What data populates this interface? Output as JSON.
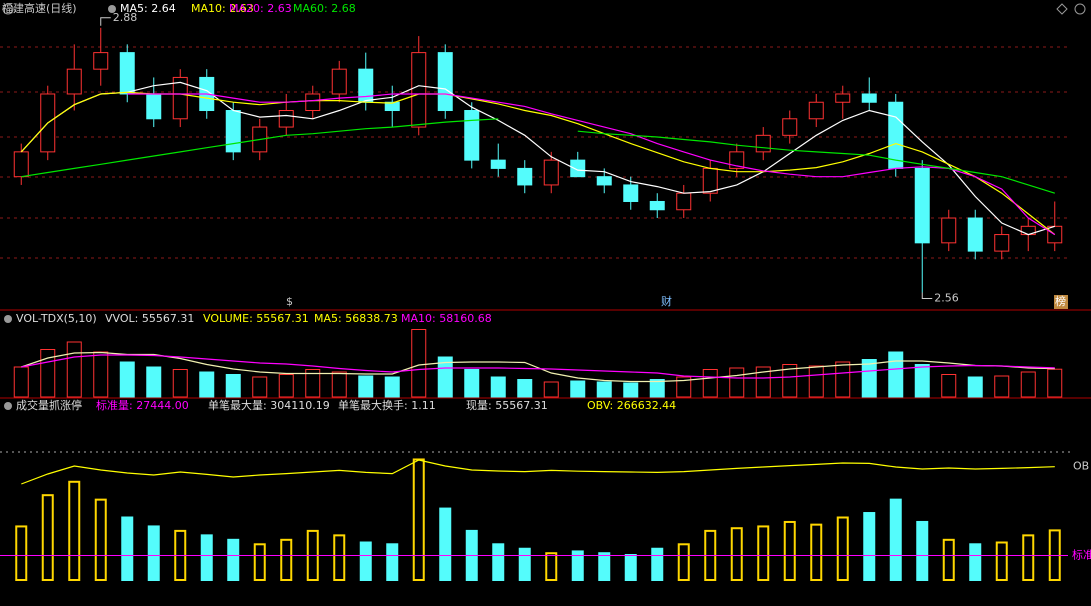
{
  "chart_data": [
    {
      "type": "candlestick",
      "title": "福建高速(日线)",
      "legend": [
        {
          "text": "MA5: 2.64",
          "color": "#ffffff"
        },
        {
          "text": "MA10: 2.63",
          "color": "#ffff00"
        },
        {
          "text": "MA20: 2.63",
          "color": "#ff00ff"
        },
        {
          "text": "MA60: 2.68",
          "color": "#00e600"
        }
      ],
      "open": [
        2.7,
        2.73,
        2.8,
        2.83,
        2.85,
        2.8,
        2.77,
        2.82,
        2.78,
        2.73,
        2.76,
        2.78,
        2.8,
        2.83,
        2.79,
        2.76,
        2.85,
        2.78,
        2.72,
        2.71,
        2.69,
        2.72,
        2.7,
        2.69,
        2.67,
        2.66,
        2.68,
        2.71,
        2.73,
        2.75,
        2.77,
        2.79,
        2.8,
        2.79,
        2.71,
        2.62,
        2.65,
        2.61,
        2.63,
        2.62
      ],
      "high": [
        2.74,
        2.81,
        2.86,
        2.88,
        2.86,
        2.82,
        2.83,
        2.83,
        2.79,
        2.77,
        2.8,
        2.81,
        2.84,
        2.85,
        2.81,
        2.87,
        2.86,
        2.79,
        2.74,
        2.72,
        2.73,
        2.73,
        2.71,
        2.7,
        2.68,
        2.69,
        2.72,
        2.74,
        2.76,
        2.78,
        2.8,
        2.81,
        2.82,
        2.8,
        2.72,
        2.66,
        2.66,
        2.64,
        2.65,
        2.67
      ],
      "low": [
        2.69,
        2.72,
        2.78,
        2.81,
        2.79,
        2.76,
        2.76,
        2.77,
        2.72,
        2.72,
        2.75,
        2.77,
        2.79,
        2.78,
        2.76,
        2.75,
        2.77,
        2.71,
        2.7,
        2.68,
        2.68,
        2.7,
        2.68,
        2.66,
        2.65,
        2.65,
        2.67,
        2.7,
        2.72,
        2.74,
        2.76,
        2.77,
        2.78,
        2.7,
        2.56,
        2.61,
        2.6,
        2.6,
        2.61,
        2.61
      ],
      "close": [
        2.73,
        2.8,
        2.83,
        2.85,
        2.8,
        2.77,
        2.82,
        2.78,
        2.73,
        2.76,
        2.78,
        2.8,
        2.83,
        2.79,
        2.78,
        2.85,
        2.78,
        2.72,
        2.71,
        2.69,
        2.72,
        2.7,
        2.69,
        2.67,
        2.66,
        2.68,
        2.71,
        2.73,
        2.75,
        2.77,
        2.79,
        2.8,
        2.79,
        2.71,
        2.62,
        2.65,
        2.61,
        2.63,
        2.64,
        2.64
      ],
      "up_color": "#ff3232",
      "down_color": "#54fcfc",
      "series": [
        {
          "color": "#ffffff",
          "values": [
            2.73,
            2.765,
            2.787,
            2.8,
            2.802,
            2.81,
            2.814,
            2.804,
            2.78,
            2.772,
            2.774,
            2.77,
            2.78,
            2.792,
            2.796,
            2.81,
            2.806,
            2.784,
            2.768,
            2.75,
            2.724,
            2.708,
            2.706,
            2.694,
            2.688,
            2.68,
            2.682,
            2.69,
            2.706,
            2.728,
            2.75,
            2.768,
            2.78,
            2.772,
            2.742,
            2.714,
            2.676,
            2.644,
            2.63,
            2.64
          ]
        },
        {
          "color": "#ffff00",
          "values": [
            2.73,
            2.765,
            2.787,
            2.8,
            2.802,
            2.8,
            2.8,
            2.795,
            2.79,
            2.787,
            2.79,
            2.792,
            2.792,
            2.79,
            2.789,
            2.8,
            2.8,
            2.794,
            2.788,
            2.78,
            2.774,
            2.764,
            2.752,
            2.74,
            2.729,
            2.718,
            2.71,
            2.706,
            2.706,
            2.708,
            2.711,
            2.718,
            2.728,
            2.74,
            2.73,
            2.715,
            2.7,
            2.68,
            2.655,
            2.63
          ]
        },
        {
          "color": "#ff00ff",
          "values": [
            null,
            null,
            null,
            null,
            2.8,
            2.8,
            2.8,
            2.8,
            2.795,
            2.79,
            2.79,
            2.792,
            2.795,
            2.797,
            2.8,
            2.8,
            2.8,
            2.795,
            2.79,
            2.785,
            2.776,
            2.768,
            2.76,
            2.752,
            2.74,
            2.73,
            2.72,
            2.713,
            2.707,
            2.703,
            2.7,
            2.7,
            2.705,
            2.71,
            2.712,
            2.71,
            2.7,
            2.685,
            2.65,
            2.63
          ]
        },
        {
          "color": "#00e600",
          "values": [
            2.7,
            2.705,
            2.71,
            2.715,
            2.72,
            2.725,
            2.73,
            2.735,
            2.74,
            2.745,
            2.75,
            2.752,
            2.755,
            2.758,
            2.76,
            2.763,
            2.766,
            2.768,
            2.77,
            null,
            null,
            2.755,
            2.752,
            2.75,
            2.748,
            2.745,
            2.742,
            2.738,
            2.735,
            2.732,
            2.73,
            2.728,
            2.726,
            2.72,
            2.715,
            2.71,
            2.705,
            2.7,
            2.69,
            2.68
          ]
        }
      ],
      "ylim": [
        2.54,
        2.91
      ],
      "annotations": [
        {
          "text": "2.88",
          "value": 2.88
        },
        {
          "text": "2.56",
          "value": 2.56
        }
      ],
      "markers": [
        "$",
        "财",
        "榜"
      ]
    },
    {
      "type": "volume",
      "title": "VOL-TDX(5,10)",
      "legend": [
        {
          "text": "VVOL: 55567.31",
          "color": "#dddddd"
        },
        {
          "text": "VOLUME: 55567.31",
          "color": "#ffff00"
        },
        {
          "text": "MA5: 56838.73",
          "color": "#ffff00"
        },
        {
          "text": "MA10: 58160.68",
          "color": "#ff00ff"
        }
      ],
      "values": [
        60000,
        95000,
        110000,
        90000,
        70000,
        60000,
        55000,
        50000,
        45000,
        40000,
        45000,
        55000,
        50000,
        42000,
        40000,
        135000,
        80000,
        55000,
        40000,
        35000,
        30000,
        32000,
        30000,
        28000,
        35000,
        40000,
        55000,
        58000,
        60000,
        65000,
        62000,
        70000,
        75000,
        90000,
        65000,
        45000,
        40000,
        42000,
        50000,
        55567.31
      ],
      "series": [
        {
          "color": "#f0f0b0",
          "values": [
            60000,
            78000,
            88000,
            89000,
            85000,
            85000,
            77000,
            65000,
            56000,
            50000,
            47000,
            47000,
            47000,
            46000,
            46000,
            64000,
            69000,
            70000,
            70000,
            69000,
            48000,
            38000,
            33000,
            31000,
            31000,
            33000,
            38000,
            43000,
            50000,
            56000,
            60000,
            64000,
            66000,
            72000,
            72000,
            68000,
            63000,
            62000,
            58000,
            56838.73
          ]
        },
        {
          "color": "#ff00ff",
          "values": [
            60000,
            70000,
            80000,
            84000,
            84000,
            83000,
            80000,
            76000,
            72000,
            68000,
            66000,
            62000,
            57000,
            53000,
            50000,
            55000,
            58000,
            58000,
            58000,
            57000,
            56000,
            54000,
            52000,
            50000,
            48000,
            42000,
            40000,
            38000,
            38000,
            40000,
            44000,
            48000,
            52000,
            56000,
            60000,
            62000,
            63000,
            62000,
            60000,
            58160.68
          ]
        }
      ],
      "ylim": [
        0,
        150000
      ]
    },
    {
      "type": "indicator",
      "title": "成交量抓涨停",
      "legend": [
        {
          "text": "标准量: 27444.00",
          "color": "#ff00ff"
        },
        {
          "text": "单笔最大量: 304110.19",
          "color": "#dddddd"
        },
        {
          "text": "单笔最大换手: 1.11",
          "color": "#dddddd"
        },
        {
          "text": "现量: 55567.31",
          "color": "#dddddd"
        },
        {
          "text": "OBV: 266632.44",
          "color": "#ffff00"
        }
      ],
      "standard": 27444,
      "standard_label": "标准",
      "standard_color": "#ff00ff",
      "obv": [
        180000,
        230000,
        270000,
        250000,
        235000,
        225000,
        240000,
        228000,
        215000,
        225000,
        232000,
        240000,
        248000,
        238000,
        232000,
        300000,
        270000,
        250000,
        245000,
        242000,
        248000,
        244000,
        242000,
        240000,
        238000,
        242000,
        250000,
        258000,
        265000,
        272000,
        278000,
        285000,
        283000,
        265000,
        255000,
        260000,
        255000,
        258000,
        262000,
        266632.44
      ],
      "obv_label": "OB",
      "obv_color": "#ffff00",
      "obv_lim": [
        100000,
        400000
      ],
      "up_color": "#ffd700",
      "down_color": "#54fcfc",
      "ylim": [
        0,
        140000
      ]
    }
  ]
}
